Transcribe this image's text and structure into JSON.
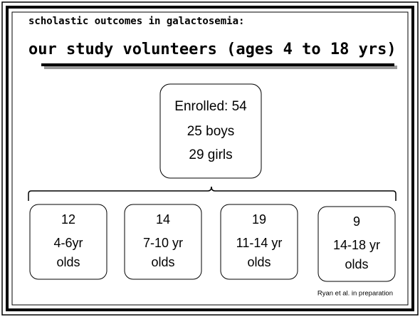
{
  "header": {
    "subtitle": "scholastic outcomes in galactosemia:",
    "title": "our study volunteers (ages 4 to 18 yrs)"
  },
  "root": {
    "lines": [
      "Enrolled: 54",
      "25 boys",
      "29 girls"
    ]
  },
  "groups": [
    {
      "lines": [
        "12",
        "4-6yr",
        "olds"
      ]
    },
    {
      "lines": [
        "14",
        "7-10 yr",
        "olds"
      ]
    },
    {
      "lines": [
        "19",
        "11-14 yr",
        "olds"
      ]
    },
    {
      "lines": [
        "9",
        "14-18 yr",
        "olds"
      ]
    }
  ],
  "citation": "Ryan et al. in preparation"
}
